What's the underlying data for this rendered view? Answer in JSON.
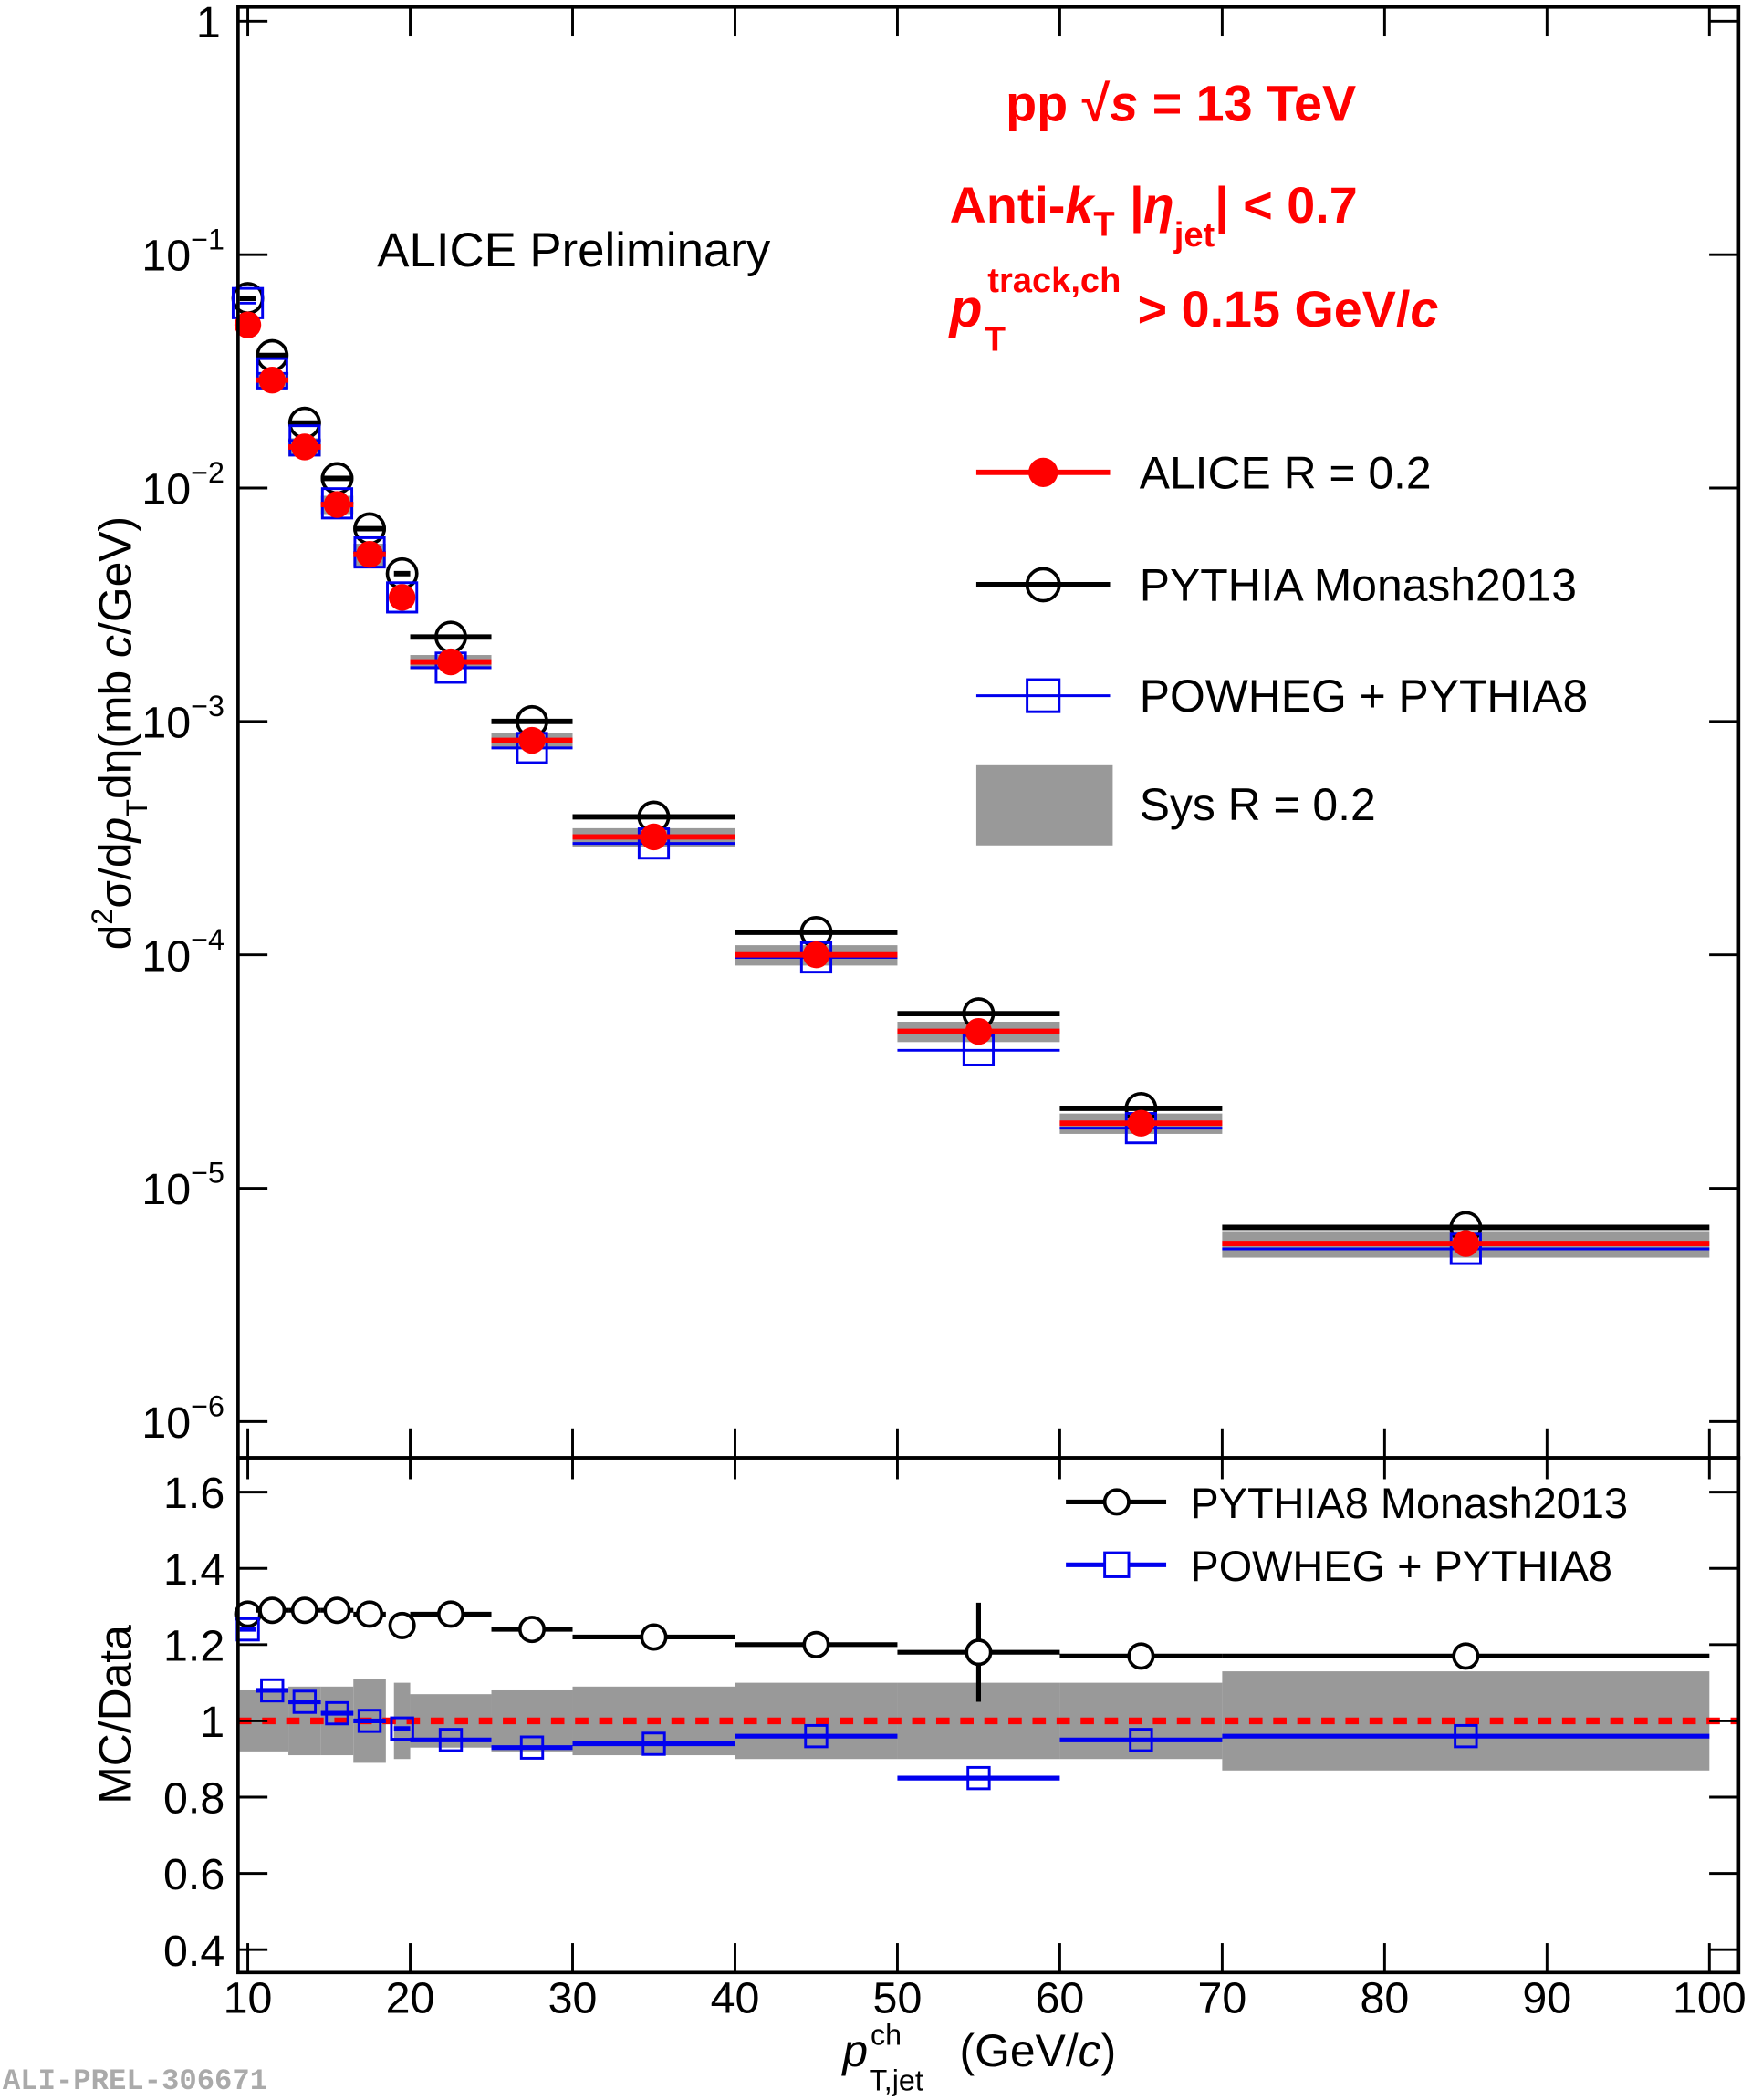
{
  "chart_data": [
    {
      "type": "errorbar",
      "log_y": true,
      "annotations": {
        "experiment": "ALICE Preliminary",
        "energy": [
          "pp  √",
          "s",
          " = 13 TeV"
        ],
        "jets": [
          "Anti-",
          "k",
          "T",
          "   |η",
          "jet",
          "| < 0.7"
        ],
        "track": [
          "p",
          "track,ch",
          "T",
          " > 0.15 GeV/",
          "c"
        ]
      },
      "ylabel": [
        "d",
        "2",
        "σ/d",
        "p",
        "T",
        "dη(mb ",
        "c",
        "/GeV)"
      ],
      "x": [
        10,
        11.5,
        13.5,
        15.5,
        17.5,
        19.5,
        22.5,
        27.5,
        35,
        45,
        55,
        65,
        85
      ],
      "xerr": [
        0.5,
        1,
        1,
        1,
        1,
        0.5,
        2.5,
        2.5,
        5,
        5,
        5,
        5,
        15
      ],
      "xlim": [
        9.4,
        101.8
      ],
      "ylim": [
        7e-07,
        1.15
      ],
      "yticks": [
        1,
        {
          "value": 0.1,
          "label": "10",
          "exponent": "−1"
        },
        {
          "value": 0.01,
          "label": "10",
          "exponent": "−2"
        },
        {
          "value": 0.001,
          "label": "10",
          "exponent": "−3"
        },
        {
          "value": 0.0001,
          "label": "10",
          "exponent": "−4"
        },
        {
          "value": 1e-05,
          "label": "10",
          "exponent": "−5"
        },
        {
          "value": 1e-06,
          "label": "10",
          "exponent": "−6"
        }
      ],
      "sys": [
        0.08,
        0.08,
        0.09,
        0.09,
        0.11,
        0.1,
        0.07,
        0.08,
        0.09,
        0.1,
        0.1,
        0.1,
        0.13
      ],
      "sys_name": "Sys R = 0.2",
      "sys_color": "#999999",
      "series": [
        {
          "name": "ALICE R = 0.2",
          "color": "#ff0000",
          "marker": "circle-filled",
          "values": [
            0.05,
            0.029,
            0.015,
            0.0085,
            0.0052,
            0.0034,
            0.0018,
            0.00083,
            0.00032,
            0.0001,
            4.7e-05,
            1.9e-05,
            5.8e-06
          ]
        },
        {
          "name": "PYTHIA Monash2013",
          "color": "#000000",
          "marker": "circle-open",
          "values": [
            0.065,
            0.037,
            0.019,
            0.011,
            0.0067,
            0.0043,
            0.0023,
            0.001,
            0.00039,
            0.000125,
            5.6e-05,
            2.2e-05,
            6.8e-06
          ]
        },
        {
          "name": "POWHEG + PYTHIA8",
          "color": "#0000ee",
          "marker": "square-open",
          "values": [
            0.062,
            0.031,
            0.016,
            0.0086,
            0.0053,
            0.0034,
            0.0017,
            0.00077,
            0.0003,
            9.75e-05,
            3.9e-05,
            1.81e-05,
            5.5e-06
          ]
        }
      ]
    },
    {
      "type": "ratio",
      "ylabel": "MC/Data",
      "xlabel": [
        "p",
        "ch",
        "T,jet",
        " (GeV/",
        "c",
        ")"
      ],
      "xticks": [
        10,
        20,
        30,
        40,
        50,
        60,
        70,
        80,
        90,
        100
      ],
      "ylim": [
        0.34,
        1.69
      ],
      "yticks": [
        0.4,
        0.6,
        0.8,
        1,
        1.2,
        1.4,
        1.6
      ],
      "series": [
        {
          "name": "PYTHIA8 Monash2013",
          "color": "#000000",
          "marker": "circle-open",
          "values": [
            1.28,
            1.29,
            1.29,
            1.29,
            1.28,
            1.25,
            1.28,
            1.24,
            1.22,
            1.2,
            1.18,
            1.17,
            1.17
          ],
          "errors": [
            null,
            null,
            null,
            null,
            null,
            null,
            null,
            null,
            null,
            null,
            0.13,
            null,
            null
          ]
        },
        {
          "name": "POWHEG + PYTHIA8",
          "color": "#0000ee",
          "marker": "square-open",
          "values": [
            1.24,
            1.08,
            1.05,
            1.02,
            1.0,
            0.98,
            0.95,
            0.93,
            0.94,
            0.96,
            0.85,
            0.95,
            0.96
          ]
        }
      ]
    }
  ],
  "watermark": "ALI-PREL-306671"
}
